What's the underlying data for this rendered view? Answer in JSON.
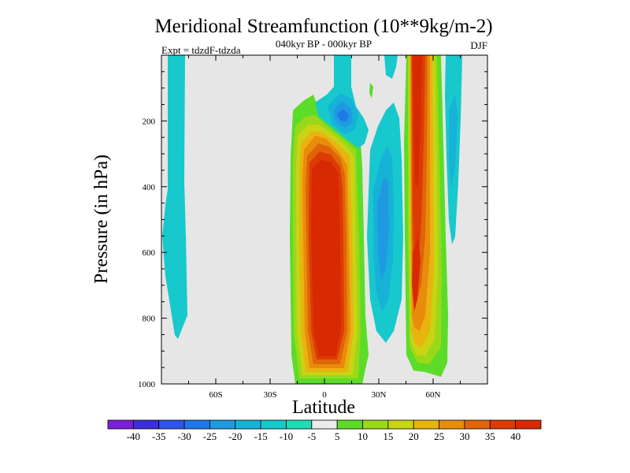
{
  "chart_data": {
    "type": "contour",
    "title": "Meridional Streamfunction (10**9kg/m-2)",
    "subtitle": "040kyr BP - 000kyr BP",
    "left_label": "Expt = tdzdF-tdzda",
    "right_label": "DJF",
    "xlabel": "Latitude",
    "ylabel": "Pressure (in hPa)",
    "xlim": [
      -90,
      90
    ],
    "ylim": [
      0,
      1000
    ],
    "x_ticks": [
      {
        "value": -60,
        "label": "60S"
      },
      {
        "value": -30,
        "label": "30S"
      },
      {
        "value": 0,
        "label": "0"
      },
      {
        "value": 30,
        "label": "30N"
      },
      {
        "value": 60,
        "label": "60N"
      }
    ],
    "y_ticks": [
      {
        "value": 200,
        "label": "200"
      },
      {
        "value": 400,
        "label": "400"
      },
      {
        "value": 600,
        "label": "600"
      },
      {
        "value": 800,
        "label": "800"
      },
      {
        "value": 1000,
        "label": "1000"
      }
    ],
    "colorbar": {
      "levels": [
        "-40",
        "-35",
        "-30",
        "-25",
        "-20",
        "-15",
        "-10",
        "-5",
        "5",
        "10",
        "15",
        "20",
        "25",
        "30",
        "35",
        "40"
      ],
      "colors": [
        "#7b1fd6",
        "#3b2fd8",
        "#2f54e8",
        "#1f78e8",
        "#1f9ae0",
        "#16b2d8",
        "#17c8cc",
        "#20dcb4",
        "#ebebeb",
        "#5cdc28",
        "#9ad81a",
        "#c8d414",
        "#e8b410",
        "#e88c0c",
        "#e06408",
        "#dc3c04",
        "#d82a02"
      ]
    },
    "features": [
      {
        "name": "tropical-positive-cell",
        "lat_range": [
          -15,
          20
        ],
        "pressure_range": [
          125,
          1000
        ],
        "peak": 40
      },
      {
        "name": "north-positive-cell",
        "lat_range": [
          45,
          67
        ],
        "pressure_range": [
          0,
          1000
        ],
        "peak": 40
      },
      {
        "name": "south-negative-band",
        "lat_range": [
          -87,
          -78
        ],
        "pressure_range": [
          0,
          870
        ],
        "peak": -10
      },
      {
        "name": "upper-negative-center",
        "lat_range": [
          5,
          20
        ],
        "pressure_range": [
          0,
          225
        ],
        "peak": -25
      },
      {
        "name": "mid-negative-cell",
        "lat_range": [
          25,
          42
        ],
        "pressure_range": [
          200,
          920
        ],
        "peak": -15
      },
      {
        "name": "polar-negative-strip",
        "lat_range": [
          67,
          76
        ],
        "pressure_range": [
          0,
          540
        ],
        "peak": -10
      }
    ]
  }
}
